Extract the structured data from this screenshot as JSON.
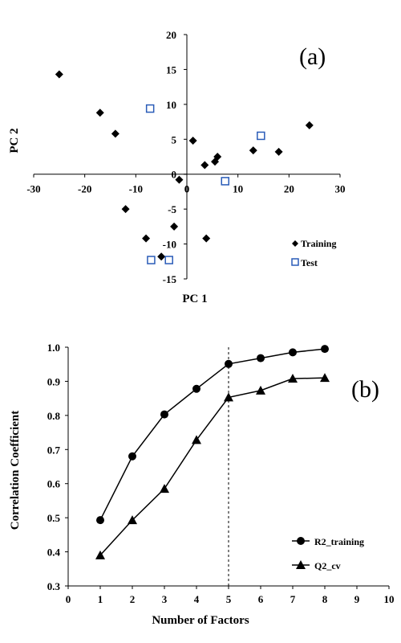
{
  "chart_data": [
    {
      "type": "scatter",
      "panel_label": "(a)",
      "xlabel": "PC 1",
      "ylabel": "PC 2",
      "xlim": [
        -30,
        30
      ],
      "ylim": [
        -15,
        20
      ],
      "xticks": [
        -30,
        -20,
        -10,
        0,
        10,
        20,
        30
      ],
      "yticks": [
        -15,
        -10,
        -5,
        0,
        5,
        10,
        15,
        20
      ],
      "legend_position": "bottom-right",
      "series": [
        {
          "name": "Training",
          "marker": "diamond",
          "color": "#000000",
          "points": [
            [
              -25,
              14.3
            ],
            [
              -17,
              8.8
            ],
            [
              -14,
              5.8
            ],
            [
              -12,
              -5
            ],
            [
              -8,
              -9.2
            ],
            [
              -5,
              -11.8
            ],
            [
              -2.5,
              -7.5
            ],
            [
              -1.5,
              -0.8
            ],
            [
              1.2,
              4.8
            ],
            [
              3.5,
              1.3
            ],
            [
              5.5,
              1.8
            ],
            [
              6,
              2.5
            ],
            [
              3.8,
              -9.2
            ],
            [
              13,
              3.4
            ],
            [
              18,
              3.2
            ],
            [
              24,
              7
            ]
          ]
        },
        {
          "name": "Test",
          "marker": "square-open",
          "color": "#2a5cb8",
          "points": [
            [
              -7.2,
              9.4
            ],
            [
              14.5,
              5.5
            ],
            [
              7.5,
              -1
            ],
            [
              -7,
              -12.3
            ],
            [
              -3.5,
              -12.3
            ]
          ]
        }
      ]
    },
    {
      "type": "line",
      "panel_label": "(b)",
      "xlabel": "Number of  Factors",
      "ylabel": "Correlation Coefficient",
      "xlim": [
        0,
        10
      ],
      "ylim": [
        0.3,
        1.0
      ],
      "xticks": [
        0,
        1,
        2,
        3,
        4,
        5,
        6,
        7,
        8,
        9,
        10
      ],
      "yticks": [
        "0.3",
        "0.4",
        "0.5",
        "0.6",
        "0.7",
        "0.8",
        "0.9",
        "1.0"
      ],
      "reference_line_x": 5,
      "legend_position": "bottom-right",
      "x": [
        1,
        2,
        3,
        4,
        5,
        6,
        7,
        8
      ],
      "series": [
        {
          "name": "R2_training",
          "marker": "circle",
          "values": [
            0.493,
            0.68,
            0.803,
            0.878,
            0.951,
            0.968,
            0.985,
            0.995
          ]
        },
        {
          "name": "Q2_cv",
          "marker": "triangle",
          "values": [
            0.39,
            0.493,
            0.585,
            0.728,
            0.853,
            0.873,
            0.908,
            0.91
          ]
        }
      ]
    }
  ]
}
